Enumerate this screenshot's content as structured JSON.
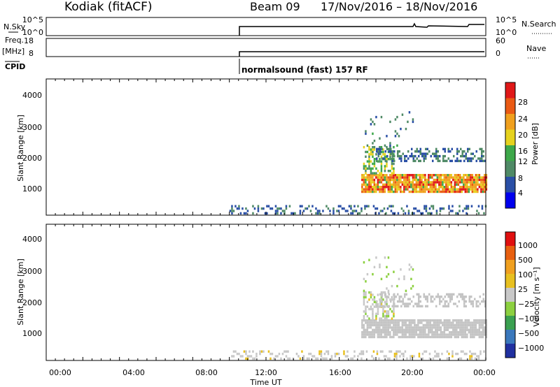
{
  "header": {
    "radar": "Kodiak (fitACF)",
    "beam": "Beam 09",
    "dates": "17/Nov/2016 – 18/Nov/2016"
  },
  "params": {
    "nsky_label": "N.Sky",
    "nsky_ticks": [
      "10^5",
      "10^0"
    ],
    "nsearch_label": "N.Search",
    "nsearch_ticks": [
      "10^5",
      "10^0"
    ],
    "freq_label": "Freq.",
    "freq_unit": "[MHz]",
    "freq_ticks": [
      "18",
      "8"
    ],
    "nave_label": "Nave",
    "nave_ticks": [
      "60",
      "0"
    ],
    "cpid_label": "CPID",
    "cpid_value": "normalsound (fast) 157 RF"
  },
  "colors": {
    "power": [
      "#0000ee",
      "#2a4fa6",
      "#4f8a66",
      "#3da84a",
      "#e6d21e",
      "#f0a01e",
      "#ea5a14",
      "#e01818"
    ],
    "velocity": [
      "#2030a0",
      "#3a78bc",
      "#3aa050",
      "#8cd040",
      "#c8c8c8",
      "#e8c020",
      "#f0a020",
      "#e86010",
      "#e01010"
    ],
    "ground_scatter": "#c4c4c4"
  },
  "chart_data": [
    {
      "type": "heatmap",
      "name": "power",
      "ylabel": "Slant Range [km]",
      "yticks": [
        "4000",
        "3000",
        "2000",
        "1000"
      ],
      "ylim": [
        180,
        4600
      ],
      "xlim": [
        0,
        24
      ],
      "xticks": [
        "00:00",
        "04:00",
        "08:00",
        "12:00",
        "16:00",
        "20:00",
        "00:00"
      ],
      "colorbar_label": "Power [dB]",
      "colorbar_ticks": [
        "28",
        "24",
        "20",
        "16",
        "12",
        "8",
        "4"
      ],
      "colorbar_range": [
        0,
        32
      ],
      "regions": [
        {
          "t0": 10.0,
          "t1": 24.0,
          "r0": 200,
          "r1": 450,
          "density": 0.35,
          "vals": [
            4,
            10
          ]
        },
        {
          "t0": 17.2,
          "t1": 24.0,
          "r0": 900,
          "r1": 1500,
          "density": 0.9,
          "vals": [
            14,
            30
          ]
        },
        {
          "t0": 17.3,
          "t1": 19.0,
          "r0": 1500,
          "r1": 2400,
          "density": 0.55,
          "vals": [
            8,
            20
          ]
        },
        {
          "t0": 18.0,
          "t1": 24.0,
          "r0": 1900,
          "r1": 2300,
          "density": 0.5,
          "vals": [
            4,
            12
          ]
        },
        {
          "t0": 17.3,
          "t1": 20.0,
          "r0": 2400,
          "r1": 3500,
          "density": 0.15,
          "vals": [
            4,
            14
          ]
        }
      ]
    },
    {
      "type": "heatmap",
      "name": "velocity",
      "ylabel": "Slant Range [km]",
      "yticks": [
        "4000",
        "3000",
        "2000",
        "1000"
      ],
      "ylim": [
        180,
        4600
      ],
      "xlim": [
        0,
        24
      ],
      "xlabel": "Time UT",
      "xticks": [
        "00:00",
        "04:00",
        "08:00",
        "12:00",
        "16:00",
        "20:00",
        "00:00"
      ],
      "colorbar_label": "Velocity [m s⁻¹]",
      "colorbar_ticks": [
        "1000",
        "500",
        "100",
        "25",
        "−25",
        "−100",
        "−500",
        "−1000"
      ],
      "colorbar_range": [
        -1200,
        1200
      ],
      "regions": [
        {
          "t0": 10.0,
          "t1": 24.0,
          "r0": 200,
          "r1": 450,
          "density": 0.35,
          "vals": [
            -200,
            40
          ]
        },
        {
          "t0": 17.2,
          "t1": 24.0,
          "r0": 900,
          "r1": 1500,
          "density": 0.9,
          "vals": [
            -20,
            20
          ]
        },
        {
          "t0": 17.3,
          "t1": 19.0,
          "r0": 1500,
          "r1": 2400,
          "density": 0.55,
          "vals": [
            -200,
            200
          ]
        },
        {
          "t0": 18.0,
          "t1": 24.0,
          "r0": 1900,
          "r1": 2300,
          "density": 0.5,
          "vals": [
            -20,
            20
          ]
        },
        {
          "t0": 17.3,
          "t1": 20.0,
          "r0": 2400,
          "r1": 3500,
          "density": 0.15,
          "vals": [
            -50,
            300
          ]
        }
      ]
    }
  ]
}
